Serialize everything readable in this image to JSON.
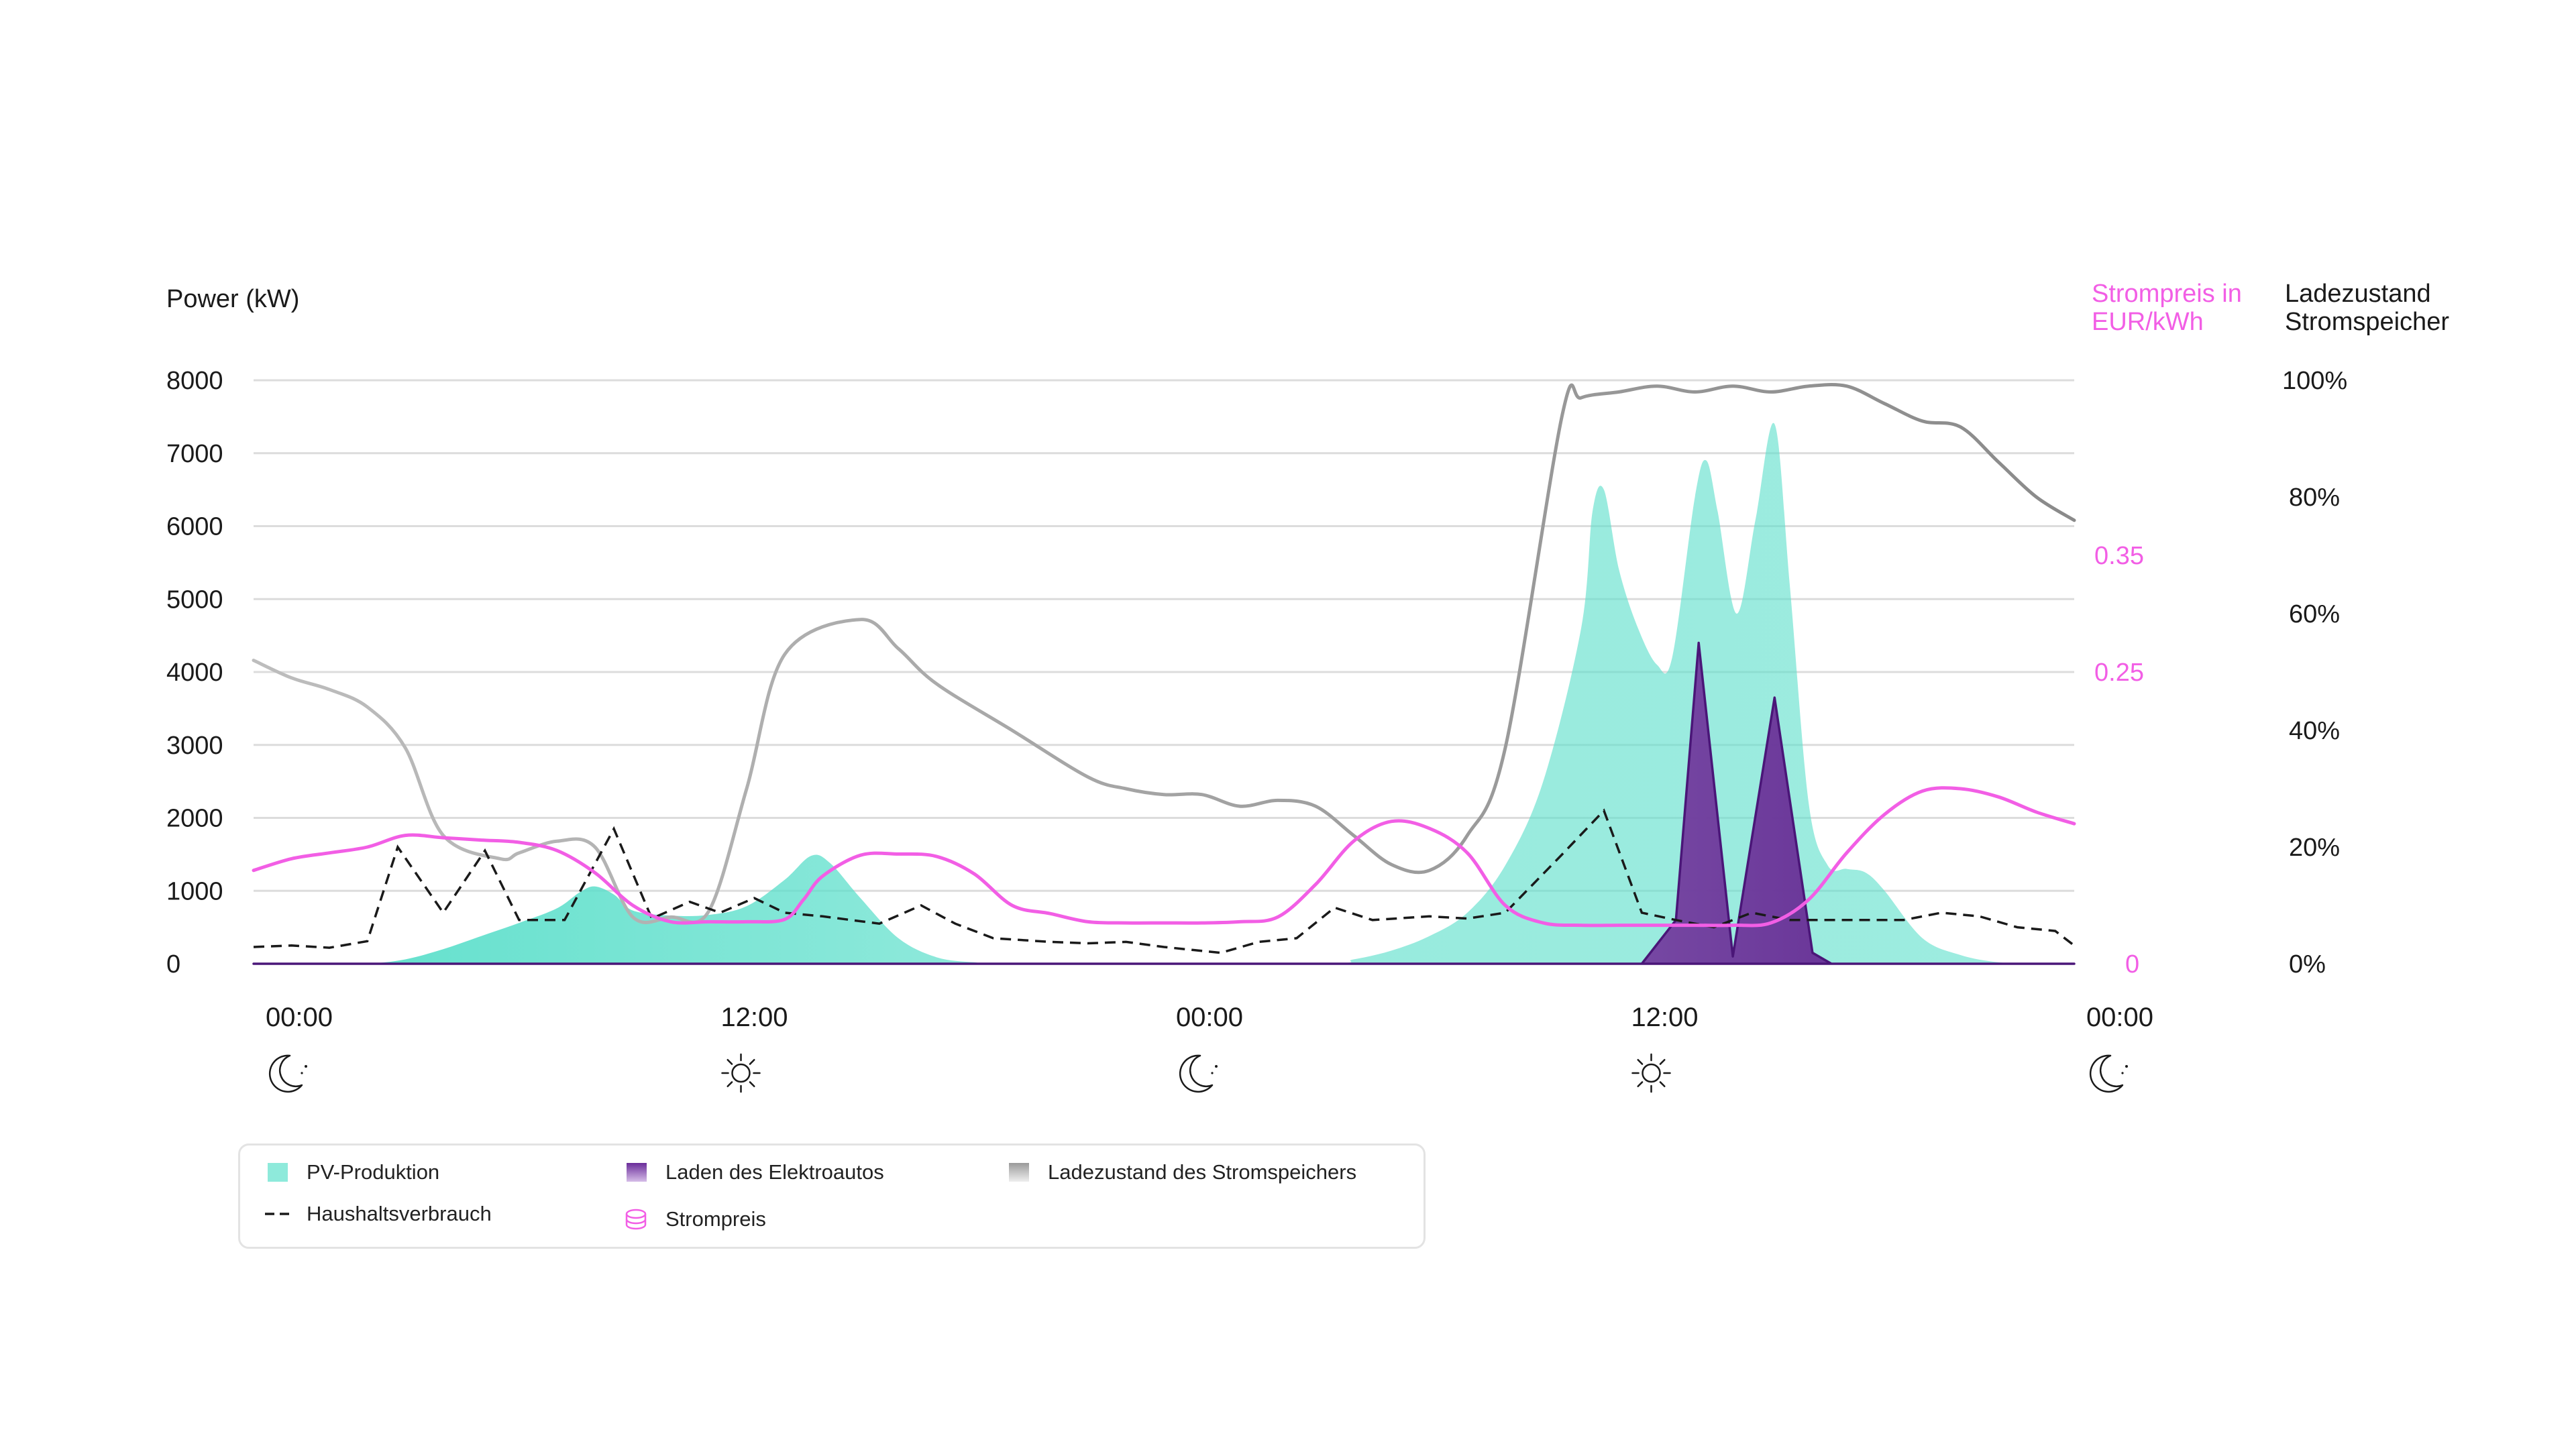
{
  "chart_data": {
    "type": "area",
    "ylabel": "Power (kW)",
    "y2label": "Strompreis in EUR/kWh",
    "y3label": "Ladezustand Stromspeicher",
    "ylim": [
      0,
      8000
    ],
    "y2lim": [
      0,
      0.5
    ],
    "y3lim": [
      0,
      100
    ],
    "yticks": [
      "0",
      "1000",
      "2000",
      "3000",
      "4000",
      "5000",
      "6000",
      "7000",
      "8000"
    ],
    "y2ticks": [
      "0",
      "0.25",
      "0.35"
    ],
    "y2tick_values": [
      0,
      0.25,
      0.35
    ],
    "y3ticks": [
      "0%",
      "20%",
      "40%",
      "60%",
      "80%",
      "100%"
    ],
    "y3tick_values": [
      0,
      20,
      40,
      60,
      80,
      100
    ],
    "xlim": [
      0,
      48
    ],
    "xticks": [
      {
        "x": 0,
        "label": "00:00",
        "icon": "moon-icon"
      },
      {
        "x": 12,
        "label": "12:00",
        "icon": "sun-icon"
      },
      {
        "x": 24,
        "label": "00:00",
        "icon": "moon-icon"
      },
      {
        "x": 36,
        "label": "12:00",
        "icon": "sun-icon"
      },
      {
        "x": 48,
        "label": "00:00",
        "icon": "moon-icon"
      }
    ],
    "grid": true,
    "series": [
      {
        "name": "PV-Produktion",
        "kind": "area",
        "color": "#5ddfcb",
        "points": [
          [
            0,
            0
          ],
          [
            2,
            0
          ],
          [
            3,
            0
          ],
          [
            4,
            60
          ],
          [
            5,
            200
          ],
          [
            6,
            380
          ],
          [
            7,
            560
          ],
          [
            8,
            760
          ],
          [
            8.6,
            980
          ],
          [
            9,
            1060
          ],
          [
            9.5,
            950
          ],
          [
            10,
            730
          ],
          [
            11,
            660
          ],
          [
            12,
            670
          ],
          [
            13,
            790
          ],
          [
            14,
            1150
          ],
          [
            14.7,
            1480
          ],
          [
            15.2,
            1380
          ],
          [
            16,
            900
          ],
          [
            17,
            350
          ],
          [
            18,
            90
          ],
          [
            19,
            20
          ],
          [
            20,
            0
          ],
          [
            28,
            0
          ],
          [
            29,
            60
          ],
          [
            30,
            180
          ],
          [
            31,
            380
          ],
          [
            32,
            700
          ],
          [
            33,
            1350
          ],
          [
            34,
            2500
          ],
          [
            35,
            4600
          ],
          [
            35.3,
            6200
          ],
          [
            35.6,
            6500
          ],
          [
            36,
            5400
          ],
          [
            36.5,
            4600
          ],
          [
            37,
            4100
          ],
          [
            37.4,
            4200
          ],
          [
            38,
            6400
          ],
          [
            38.3,
            6900
          ],
          [
            38.6,
            6200
          ],
          [
            39.1,
            4800
          ],
          [
            39.6,
            6100
          ],
          [
            40.1,
            7400
          ],
          [
            40.5,
            5200
          ],
          [
            41,
            2200
          ],
          [
            41.5,
            1350
          ],
          [
            42,
            1300
          ],
          [
            42.5,
            1250
          ],
          [
            43,
            1000
          ],
          [
            44,
            350
          ],
          [
            45,
            120
          ],
          [
            46,
            20
          ],
          [
            47,
            0
          ],
          [
            48,
            0
          ]
        ]
      },
      {
        "name": "Laden des Elektroautos",
        "kind": "area",
        "color": "#6a2c9a",
        "points": [
          [
            0,
            0
          ],
          [
            36.6,
            0
          ],
          [
            37.5,
            600
          ],
          [
            38.1,
            4400
          ],
          [
            39,
            100
          ],
          [
            40.1,
            3650
          ],
          [
            41.1,
            150
          ],
          [
            41.6,
            0
          ],
          [
            48,
            0
          ]
        ]
      },
      {
        "name": "Haushaltsverbrauch",
        "kind": "line",
        "dash": "16,10",
        "color": "#1a1a1a",
        "points": [
          [
            0,
            230
          ],
          [
            1,
            250
          ],
          [
            2,
            220
          ],
          [
            3,
            310
          ],
          [
            3.8,
            1600
          ],
          [
            5,
            700
          ],
          [
            6.1,
            1550
          ],
          [
            7,
            600
          ],
          [
            8.2,
            600
          ],
          [
            9.5,
            1850
          ],
          [
            10.5,
            620
          ],
          [
            11.5,
            850
          ],
          [
            12.3,
            700
          ],
          [
            13.2,
            900
          ],
          [
            14,
            700
          ],
          [
            15,
            650
          ],
          [
            16.5,
            550
          ],
          [
            17.6,
            800
          ],
          [
            18.5,
            550
          ],
          [
            19.5,
            350
          ],
          [
            21,
            300
          ],
          [
            22,
            280
          ],
          [
            23,
            300
          ],
          [
            24,
            230
          ],
          [
            25.5,
            150
          ],
          [
            26.5,
            300
          ],
          [
            27.5,
            350
          ],
          [
            28.5,
            770
          ],
          [
            29.5,
            600
          ],
          [
            31,
            650
          ],
          [
            32,
            620
          ],
          [
            33,
            700
          ],
          [
            34.5,
            1500
          ],
          [
            35.6,
            2100
          ],
          [
            36.6,
            700
          ],
          [
            37.5,
            600
          ],
          [
            38.5,
            500
          ],
          [
            39.5,
            700
          ],
          [
            40.5,
            600
          ],
          [
            41.5,
            600
          ],
          [
            42.5,
            600
          ],
          [
            43.5,
            600
          ],
          [
            44.5,
            700
          ],
          [
            45.5,
            650
          ],
          [
            46.5,
            500
          ],
          [
            47.5,
            450
          ],
          [
            48,
            250
          ]
        ]
      },
      {
        "name": "Ladezustand des Stromspeichers",
        "kind": "line",
        "axis": "y3",
        "color": "#b8b8b8",
        "color_late": "#8e8e8e",
        "points": [
          [
            0,
            52
          ],
          [
            1,
            49
          ],
          [
            2,
            47
          ],
          [
            3,
            44
          ],
          [
            4,
            37
          ],
          [
            5,
            22
          ],
          [
            6.5,
            18
          ],
          [
            7,
            19
          ],
          [
            8,
            21
          ],
          [
            9,
            20
          ],
          [
            10,
            8
          ],
          [
            11,
            8
          ],
          [
            12,
            9
          ],
          [
            13,
            30
          ],
          [
            14,
            53
          ],
          [
            16,
            59
          ],
          [
            17,
            54
          ],
          [
            18,
            48
          ],
          [
            20,
            40
          ],
          [
            22,
            32
          ],
          [
            23,
            30
          ],
          [
            24,
            29
          ],
          [
            25,
            29
          ],
          [
            26,
            27
          ],
          [
            27,
            28
          ],
          [
            28,
            27
          ],
          [
            29,
            22
          ],
          [
            30,
            17
          ],
          [
            31,
            16
          ],
          [
            32,
            22
          ],
          [
            33,
            37
          ],
          [
            34.5,
            94
          ],
          [
            35,
            97
          ],
          [
            36,
            98
          ],
          [
            37,
            99
          ],
          [
            38,
            98
          ],
          [
            39,
            99
          ],
          [
            40,
            98
          ],
          [
            41,
            99
          ],
          [
            42,
            99
          ],
          [
            43,
            96
          ],
          [
            44,
            93
          ],
          [
            45,
            92
          ],
          [
            46,
            86
          ],
          [
            47,
            80
          ],
          [
            48,
            76
          ]
        ]
      },
      {
        "name": "Strompreis",
        "kind": "line",
        "axis": "y2",
        "color": "#f25ee5",
        "points": [
          [
            0,
            0.08
          ],
          [
            1,
            0.09
          ],
          [
            2,
            0.095
          ],
          [
            3,
            0.1
          ],
          [
            4,
            0.11
          ],
          [
            5,
            0.108
          ],
          [
            6,
            0.106
          ],
          [
            7,
            0.104
          ],
          [
            8,
            0.097
          ],
          [
            9,
            0.078
          ],
          [
            10,
            0.05
          ],
          [
            11,
            0.036
          ],
          [
            12,
            0.036
          ],
          [
            13,
            0.036
          ],
          [
            14,
            0.038
          ],
          [
            14.5,
            0.055
          ],
          [
            15,
            0.075
          ],
          [
            16,
            0.093
          ],
          [
            17,
            0.094
          ],
          [
            18,
            0.092
          ],
          [
            19,
            0.077
          ],
          [
            20,
            0.05
          ],
          [
            21,
            0.043
          ],
          [
            22,
            0.036
          ],
          [
            23,
            0.035
          ],
          [
            24,
            0.035
          ],
          [
            25,
            0.035
          ],
          [
            26,
            0.036
          ],
          [
            27,
            0.04
          ],
          [
            28,
            0.068
          ],
          [
            29,
            0.105
          ],
          [
            30,
            0.122
          ],
          [
            31,
            0.116
          ],
          [
            32,
            0.095
          ],
          [
            33,
            0.05
          ],
          [
            34,
            0.035
          ],
          [
            35,
            0.033
          ],
          [
            36,
            0.033
          ],
          [
            37,
            0.033
          ],
          [
            38,
            0.033
          ],
          [
            39,
            0.033
          ],
          [
            40,
            0.035
          ],
          [
            41,
            0.055
          ],
          [
            42,
            0.095
          ],
          [
            43,
            0.128
          ],
          [
            44,
            0.148
          ],
          [
            45,
            0.15
          ],
          [
            46,
            0.143
          ],
          [
            47,
            0.13
          ],
          [
            48,
            0.12
          ]
        ]
      }
    ],
    "legend": [
      {
        "label": "PV-Produktion",
        "swatch": "pv",
        "row": 1,
        "col": 1
      },
      {
        "label": "Haushaltsverbrauch",
        "swatch": "dash",
        "row": 2,
        "col": 1
      },
      {
        "label": "Laden des Elektroautos",
        "swatch": "ev",
        "row": 1,
        "col": 2
      },
      {
        "label": "Strompreis",
        "swatch": "price",
        "row": 2,
        "col": 2
      },
      {
        "label": "Ladezustand des Stromspeichers",
        "swatch": "storage",
        "row": 1,
        "col": 3
      }
    ],
    "legend_placement": "bottom-left"
  }
}
